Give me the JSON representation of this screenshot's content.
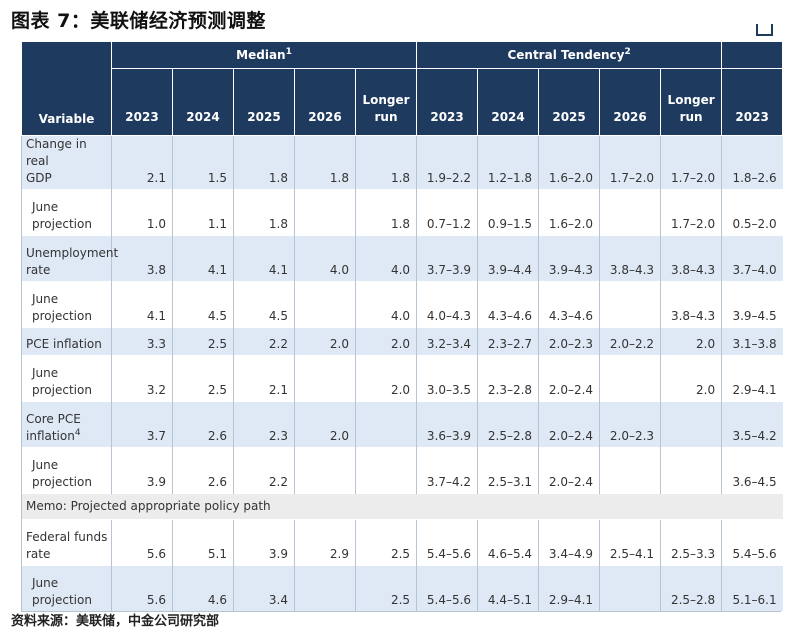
{
  "title": "图表 7：美联储经济预测调整",
  "source": "资料来源：美联储，中金公司研究部",
  "header": {
    "variable": "Variable",
    "median": {
      "label": "Median",
      "sup": "1"
    },
    "central": {
      "label": "Central Tendency",
      "sup": "2"
    },
    "years": [
      [
        "2023"
      ],
      [
        "2024"
      ],
      [
        "2025"
      ],
      [
        "2026"
      ],
      [
        "Longer",
        "run"
      ],
      [
        "2023"
      ],
      [
        "2024"
      ],
      [
        "2025"
      ],
      [
        "2026"
      ],
      [
        "Longer",
        "run"
      ],
      [
        "2023"
      ]
    ]
  },
  "rows": [
    {
      "label": [
        "Change in real",
        "GDP"
      ],
      "sup": "",
      "sub": false,
      "style": "blue",
      "height": 44,
      "values": [
        "2.1",
        "1.5",
        "1.8",
        "1.8",
        "1.8",
        "1.9–2.2",
        "1.2–1.8",
        "1.6–2.0",
        "1.7–2.0",
        "1.7–2.0",
        "1.8–2.6"
      ]
    },
    {
      "label": [
        "June",
        "projection"
      ],
      "sup": "",
      "sub": true,
      "style": "white",
      "height": 44,
      "values": [
        "1.0",
        "1.1",
        "1.8",
        "",
        "1.8",
        "0.7–1.2",
        "0.9–1.5",
        "1.6–2.0",
        "",
        "1.7–2.0",
        "0.5–2.0"
      ]
    },
    {
      "label": [
        "Unemployment",
        "rate"
      ],
      "sup": "",
      "sub": false,
      "style": "blue",
      "height": 44,
      "values": [
        "3.8",
        "4.1",
        "4.1",
        "4.0",
        "4.0",
        "3.7–3.9",
        "3.9–4.4",
        "3.9–4.3",
        "3.8–4.3",
        "3.8–4.3",
        "3.7–4.0"
      ]
    },
    {
      "label": [
        "June",
        "projection"
      ],
      "sup": "",
      "sub": true,
      "style": "white",
      "height": 44,
      "values": [
        "4.1",
        "4.5",
        "4.5",
        "",
        "4.0",
        "4.0–4.3",
        "4.3–4.6",
        "4.3–4.6",
        "",
        "3.8–4.3",
        "3.9–4.5"
      ]
    },
    {
      "label": [
        "PCE inflation"
      ],
      "sup": "",
      "sub": false,
      "style": "blue",
      "height": 26,
      "values": [
        "3.3",
        "2.5",
        "2.2",
        "2.0",
        "2.0",
        "3.2–3.4",
        "2.3–2.7",
        "2.0–2.3",
        "2.0–2.2",
        "2.0",
        "3.1–3.8"
      ]
    },
    {
      "label": [
        "June",
        "projection"
      ],
      "sup": "",
      "sub": true,
      "style": "white",
      "height": 44,
      "values": [
        "3.2",
        "2.5",
        "2.1",
        "",
        "2.0",
        "3.0–3.5",
        "2.3–2.8",
        "2.0–2.4",
        "",
        "2.0",
        "2.9–4.1"
      ]
    },
    {
      "label": [
        "Core PCE",
        "inflation"
      ],
      "sup": "4",
      "sub": false,
      "style": "blue",
      "height": 44,
      "values": [
        "3.7",
        "2.6",
        "2.3",
        "2.0",
        "",
        "3.6–3.9",
        "2.5–2.8",
        "2.0–2.4",
        "2.0–2.3",
        "",
        "3.5–4.2"
      ]
    },
    {
      "label": [
        "June",
        "projection"
      ],
      "sup": "",
      "sub": true,
      "style": "white",
      "height": 44,
      "values": [
        "3.9",
        "2.6",
        "2.2",
        "",
        "",
        "3.7–4.2",
        "2.5–3.1",
        "2.0–2.4",
        "",
        "",
        "3.6–4.5"
      ]
    },
    {
      "memo": "Memo: Projected appropriate policy path",
      "style": "memo",
      "height": 26
    },
    {
      "label": [
        "Federal funds",
        "rate"
      ],
      "sup": "",
      "sub": false,
      "style": "white",
      "height": 44,
      "values": [
        "5.6",
        "5.1",
        "3.9",
        "2.9",
        "2.5",
        "5.4–5.6",
        "4.6–5.4",
        "3.4–4.9",
        "2.5–4.1",
        "2.5–3.3",
        "5.4–5.6"
      ]
    },
    {
      "label": [
        "June",
        "projection"
      ],
      "sup": "",
      "sub": true,
      "style": "blue",
      "height": 44,
      "values": [
        "5.6",
        "4.6",
        "3.4",
        "",
        "2.5",
        "5.4–5.6",
        "4.4–5.1",
        "2.9–4.1",
        "",
        "2.5–2.8",
        "5.1–6.1"
      ]
    }
  ]
}
